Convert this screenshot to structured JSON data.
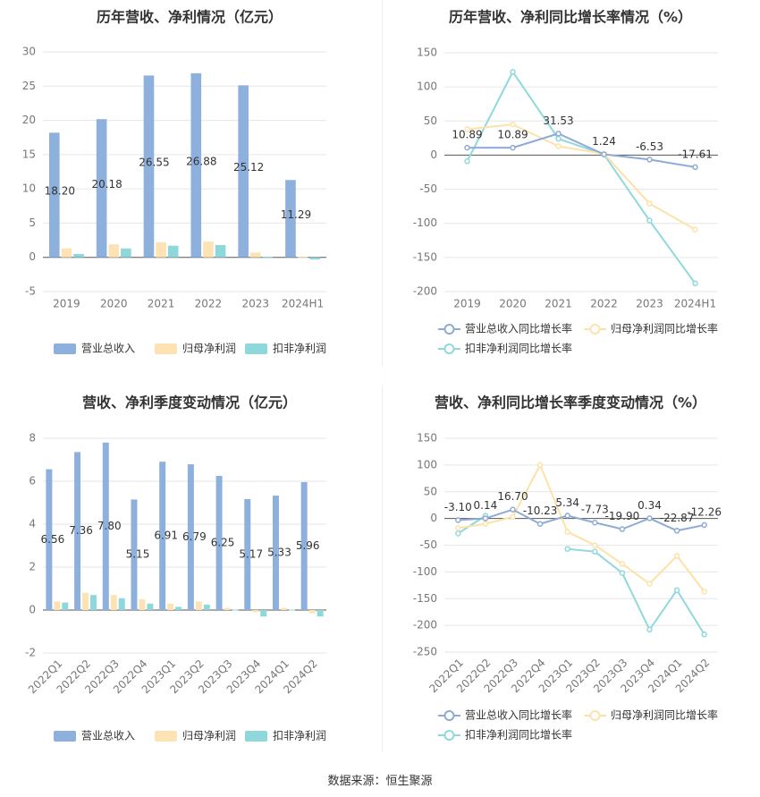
{
  "source": "数据来源：恒生聚源",
  "colors": {
    "revenue": "#8eb0dc",
    "net": "#fde3b3",
    "deducted": "#8ed8dc",
    "line_revenue": "#8eabd5",
    "line_net": "#fde2a8",
    "line_deducted": "#8fd9dd",
    "axis_text": "#777777",
    "grid": "#e6e6e6"
  },
  "chart_data": [
    {
      "type": "bar",
      "title": "历年营收、净利情况（亿元）",
      "categories": [
        "2019",
        "2020",
        "2021",
        "2022",
        "2023",
        "2024H1"
      ],
      "ylim": [
        -5,
        30
      ],
      "yticks": [
        -5,
        0,
        5,
        10,
        15,
        20,
        25,
        30
      ],
      "series": [
        {
          "name": "营业总收入",
          "values": [
            18.2,
            20.18,
            26.55,
            26.88,
            25.12,
            11.29
          ]
        },
        {
          "name": "归母净利润",
          "values": [
            1.3,
            1.9,
            2.2,
            2.3,
            0.7,
            0.05
          ]
        },
        {
          "name": "扣非净利润",
          "values": [
            0.5,
            1.3,
            1.7,
            1.8,
            0.05,
            -0.3
          ]
        }
      ],
      "data_labels": [
        "18.20",
        "20.18",
        "26.55",
        "26.88",
        "25.12",
        "11.29"
      ],
      "legend": "bottom",
      "grid": true
    },
    {
      "type": "line",
      "title": "历年营收、净利同比增长率情况（%）",
      "categories": [
        "2019",
        "2020",
        "2021",
        "2022",
        "2023",
        "2024H1"
      ],
      "ylim": [
        -200,
        150
      ],
      "yticks": [
        -200,
        -150,
        -100,
        -50,
        0,
        50,
        100,
        150
      ],
      "series": [
        {
          "name": "营业总收入同比增长率",
          "values": [
            10.89,
            10.89,
            31.53,
            1.24,
            -6.53,
            -17.61
          ]
        },
        {
          "name": "归母净利润同比增长率",
          "values": [
            38,
            45,
            13,
            2,
            -71,
            -109
          ]
        },
        {
          "name": "扣非净利润同比增长率",
          "values": [
            -9,
            122,
            24,
            1,
            -96,
            -188
          ]
        }
      ],
      "data_labels": [
        "10.89",
        "10.89",
        "31.53",
        "1.24",
        "-6.53",
        "-17.61"
      ],
      "legend": "bottom",
      "grid": true
    },
    {
      "type": "bar",
      "title": "营收、净利季度变动情况（亿元）",
      "categories": [
        "2022Q1",
        "2022Q2",
        "2022Q3",
        "2022Q4",
        "2023Q1",
        "2023Q2",
        "2023Q3",
        "2023Q4",
        "2024Q1",
        "2024Q2"
      ],
      "ylim": [
        -2,
        8
      ],
      "yticks": [
        -2,
        0,
        2,
        4,
        6,
        8
      ],
      "series": [
        {
          "name": "营业总收入",
          "values": [
            6.56,
            7.36,
            7.8,
            5.15,
            6.91,
            6.79,
            6.25,
            5.17,
            5.33,
            5.96
          ]
        },
        {
          "name": "归母净利润",
          "values": [
            0.4,
            0.8,
            0.7,
            0.5,
            0.3,
            0.4,
            0.1,
            -0.1,
            0.1,
            -0.15
          ]
        },
        {
          "name": "扣非净利润",
          "values": [
            0.35,
            0.7,
            0.55,
            0.3,
            0.15,
            0.25,
            0.02,
            -0.3,
            0.02,
            -0.3
          ]
        }
      ],
      "data_labels": [
        "6.56",
        "7.36",
        "7.80",
        "5.15",
        "6.91",
        "6.79",
        "6.25",
        "5.17",
        "5.33",
        "5.96"
      ],
      "legend": "bottom",
      "grid": true
    },
    {
      "type": "line",
      "title": "营收、净利同比增长率季度变动情况（%）",
      "categories": [
        "2022Q1",
        "2022Q2",
        "2022Q3",
        "2022Q4",
        "2023Q1",
        "2023Q2",
        "2023Q3",
        "2023Q4",
        "2024Q1",
        "2024Q2"
      ],
      "ylim": [
        -250,
        150
      ],
      "yticks": [
        -250,
        -200,
        -150,
        -100,
        -50,
        0,
        50,
        100,
        150
      ],
      "series": [
        {
          "name": "营业总收入同比增长率",
          "values": [
            -3.1,
            0.14,
            16.7,
            -10.23,
            5.34,
            -7.73,
            -19.9,
            0.34,
            -22.87,
            -12.26
          ]
        },
        {
          "name": "归母净利润同比增长率",
          "values": [
            -18,
            -10,
            3,
            100,
            -25,
            -50,
            -85,
            -122,
            -70,
            -137
          ]
        },
        {
          "name": "扣非净利润同比增长率",
          "values": [
            -28,
            5,
            null,
            null,
            -57,
            -62,
            -102,
            -208,
            -134,
            -217
          ]
        }
      ],
      "data_labels": [
        "-3.10",
        "0.14",
        "16.70",
        "-10.23",
        "5.34",
        "-7.73",
        "-19.90",
        "0.34",
        "-22.87",
        "-12.26"
      ],
      "legend": "bottom",
      "grid": true
    }
  ]
}
